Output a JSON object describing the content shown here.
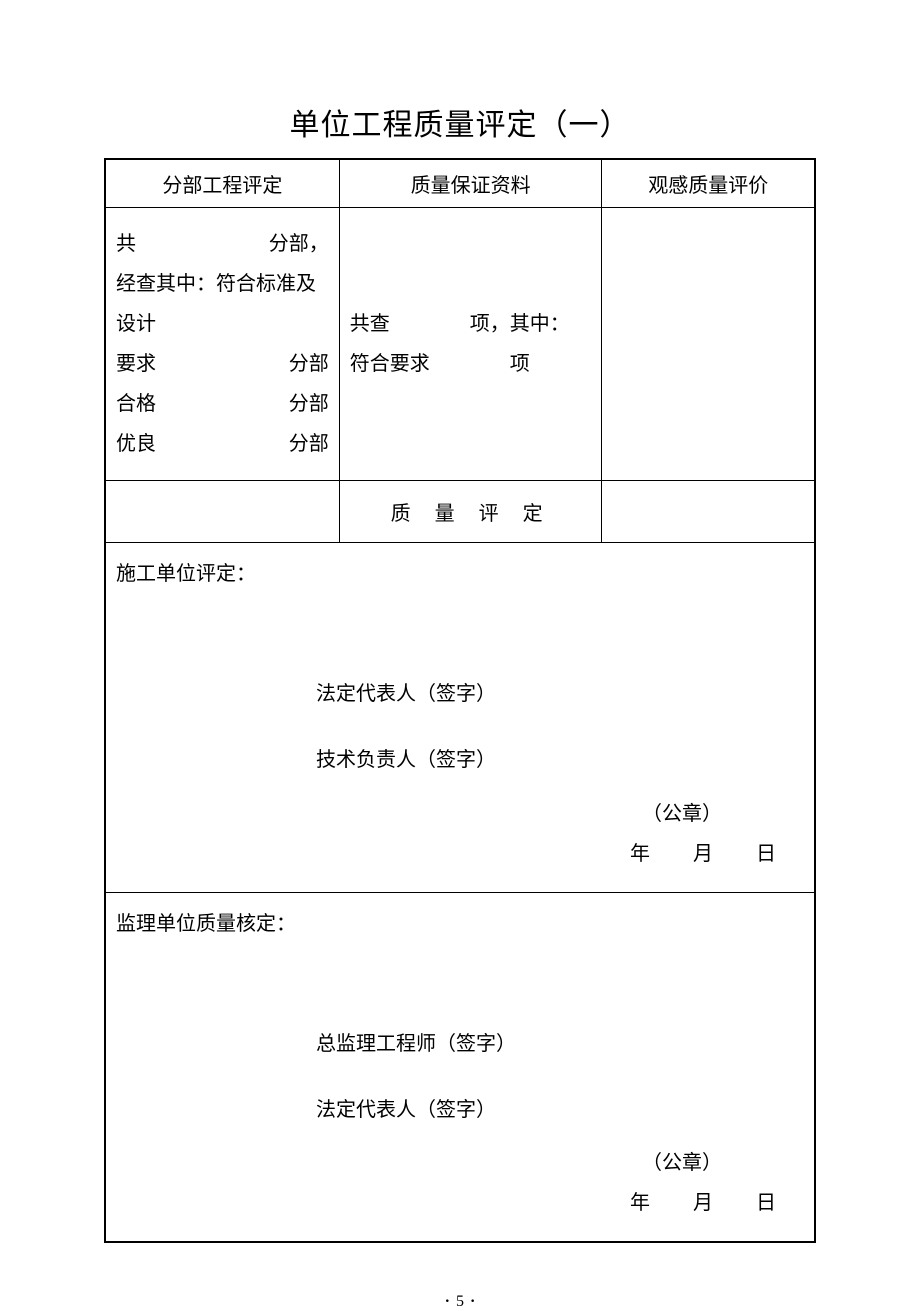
{
  "title": "单位工程质量评定（一）",
  "headers": {
    "col1": "分部工程评定",
    "col2": "质量保证资料",
    "col3": "观感质量评价"
  },
  "row2": {
    "col1": {
      "line1_left": "共",
      "line1_right": "分部，",
      "line2": "经查其中：符合标准及设计",
      "line3_left": "要求",
      "line3_right": "分部",
      "line4_left": "合格",
      "line4_right": "分部",
      "line5_left": "优良",
      "line5_right": "分部"
    },
    "col2": {
      "line1": "共查　　　　项，其中：",
      "line2": "符合要求　　　　项"
    }
  },
  "row3": {
    "label": "质量评定"
  },
  "block1": {
    "header": "施工单位评定：",
    "sig1": "法定代表人（签字）",
    "sig2": "技术负责人（签字）",
    "seal": "（公章）",
    "year": "年",
    "month": "月",
    "day": "日"
  },
  "block2": {
    "header": "监理单位质量核定：",
    "sig1": "总监理工程师（签字）",
    "sig2": "法定代表人（签字）",
    "seal": "（公章）",
    "year": "年",
    "month": "月",
    "day": "日"
  },
  "page_number": "5",
  "colors": {
    "background": "#ffffff",
    "text": "#000000",
    "border": "#000000"
  },
  "typography": {
    "title_fontsize": 30,
    "body_fontsize": 20,
    "pagenum_fontsize": 16,
    "font_family": "SimSun"
  },
  "table": {
    "outer_border_width": 2,
    "inner_border_width": 1,
    "col_widths_pct": [
      33,
      37,
      30
    ]
  }
}
